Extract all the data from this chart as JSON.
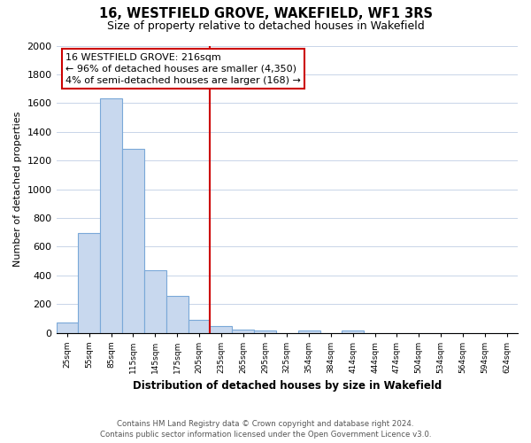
{
  "title": "16, WESTFIELD GROVE, WAKEFIELD, WF1 3RS",
  "subtitle": "Size of property relative to detached houses in Wakefield",
  "xlabel": "Distribution of detached houses by size in Wakefield",
  "ylabel": "Number of detached properties",
  "bar_labels": [
    "25sqm",
    "55sqm",
    "85sqm",
    "115sqm",
    "145sqm",
    "175sqm",
    "205sqm",
    "235sqm",
    "265sqm",
    "295sqm",
    "325sqm",
    "354sqm",
    "384sqm",
    "414sqm",
    "444sqm",
    "474sqm",
    "504sqm",
    "534sqm",
    "564sqm",
    "594sqm",
    "624sqm"
  ],
  "bar_values": [
    70,
    695,
    1630,
    1280,
    435,
    255,
    90,
    50,
    25,
    20,
    0,
    15,
    0,
    15,
    0,
    0,
    0,
    0,
    0,
    0,
    0
  ],
  "bar_color": "#c8d8ee",
  "bar_edge_color": "#7aa8d8",
  "vline_color": "#cc0000",
  "ylim": [
    0,
    2000
  ],
  "yticks": [
    0,
    200,
    400,
    600,
    800,
    1000,
    1200,
    1400,
    1600,
    1800,
    2000
  ],
  "annotation_title": "16 WESTFIELD GROVE: 216sqm",
  "annotation_line1": "← 96% of detached houses are smaller (4,350)",
  "annotation_line2": "4% of semi-detached houses are larger (168) →",
  "annotation_box_color": "#ffffff",
  "annotation_box_edge": "#cc0000",
  "footer_line1": "Contains HM Land Registry data © Crown copyright and database right 2024.",
  "footer_line2": "Contains public sector information licensed under the Open Government Licence v3.0.",
  "background_color": "#ffffff",
  "grid_color": "#c8d4e8"
}
